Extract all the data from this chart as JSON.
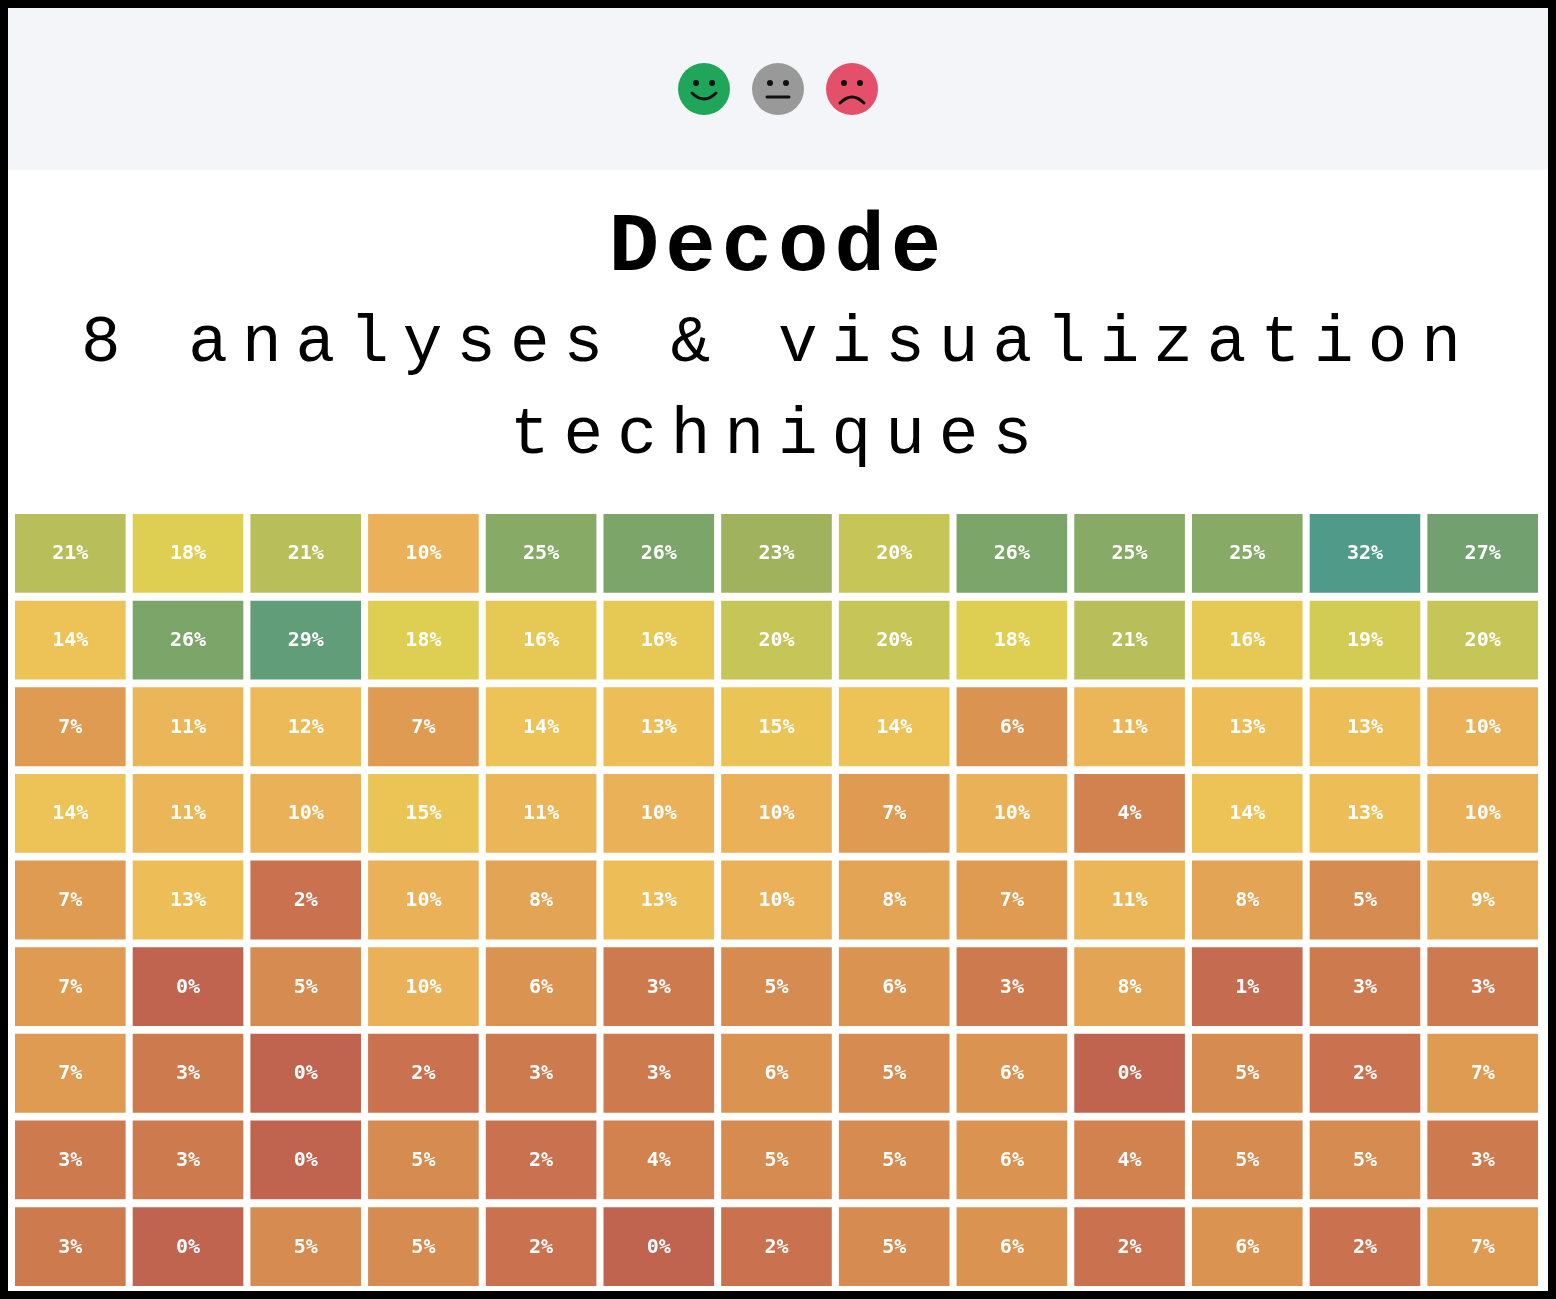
{
  "chart_data": {
    "type": "heatmap",
    "title": "Decode",
    "subtitle": "8 analyses & visualization techniques",
    "categories": [
      null,
      null,
      null,
      null,
      null,
      null,
      null,
      null,
      null,
      null,
      null,
      null,
      null
    ],
    "y_categories": [
      null,
      null,
      null,
      null,
      null,
      null,
      null,
      null,
      null
    ],
    "cells": [
      [
        21,
        18,
        21,
        10,
        25,
        26,
        23,
        20,
        26,
        25,
        25,
        32,
        27
      ],
      [
        14,
        26,
        29,
        18,
        16,
        16,
        20,
        20,
        18,
        21,
        16,
        19,
        20
      ],
      [
        7,
        11,
        12,
        7,
        14,
        13,
        15,
        14,
        6,
        11,
        13,
        13,
        10
      ],
      [
        14,
        11,
        10,
        15,
        11,
        10,
        10,
        7,
        10,
        4,
        14,
        13,
        10
      ],
      [
        7,
        13,
        2,
        10,
        8,
        13,
        10,
        8,
        7,
        11,
        8,
        5,
        9
      ],
      [
        7,
        0,
        5,
        10,
        6,
        3,
        5,
        6,
        3,
        8,
        1,
        3,
        3
      ],
      [
        7,
        3,
        0,
        2,
        3,
        3,
        6,
        5,
        6,
        0,
        5,
        2,
        7
      ],
      [
        3,
        3,
        0,
        5,
        2,
        4,
        5,
        5,
        6,
        4,
        5,
        5,
        3
      ],
      [
        3,
        0,
        5,
        5,
        2,
        0,
        2,
        5,
        6,
        2,
        6,
        2,
        7
      ]
    ],
    "cell_labels": [
      [
        "21%",
        "18%",
        "21%",
        "10%",
        "25%",
        "26%",
        "23%",
        "20%",
        "26%",
        "25%",
        "25%",
        "32%",
        "27%"
      ],
      [
        "14%",
        "26%",
        "29%",
        "18%",
        "16%",
        "16%",
        "20%",
        "20%",
        "18%",
        "21%",
        "16%",
        "19%",
        "20%"
      ],
      [
        "7%",
        "11%",
        "12%",
        "7%",
        "14%",
        "13%",
        "15%",
        "14%",
        "6%",
        "11%",
        "13%",
        "13%",
        "10%"
      ],
      [
        "14%",
        "11%",
        "10%",
        "15%",
        "11%",
        "10%",
        "10%",
        "7%",
        "10%",
        "4%",
        "14%",
        "13%",
        "10%"
      ],
      [
        "7%",
        "13%",
        "2%",
        "10%",
        "8%",
        "13%",
        "10%",
        "8%",
        "7%",
        "11%",
        "8%",
        "5%",
        "9%"
      ],
      [
        "7%",
        "0%",
        "5%",
        "10%",
        "6%",
        "3%",
        "5%",
        "6%",
        "3%",
        "8%",
        "1%",
        "3%",
        "3%"
      ],
      [
        "7%",
        "3%",
        "0%",
        "2%",
        "3%",
        "3%",
        "6%",
        "5%",
        "6%",
        "0%",
        "5%",
        "2%",
        "7%"
      ],
      [
        "3%",
        "3%",
        "0%",
        "5%",
        "2%",
        "4%",
        "5%",
        "5%",
        "6%",
        "4%",
        "5%",
        "5%",
        "3%"
      ],
      [
        "3%",
        "0%",
        "5%",
        "5%",
        "2%",
        "0%",
        "2%",
        "5%",
        "6%",
        "2%",
        "6%",
        "2%",
        "7%"
      ]
    ]
  }
}
